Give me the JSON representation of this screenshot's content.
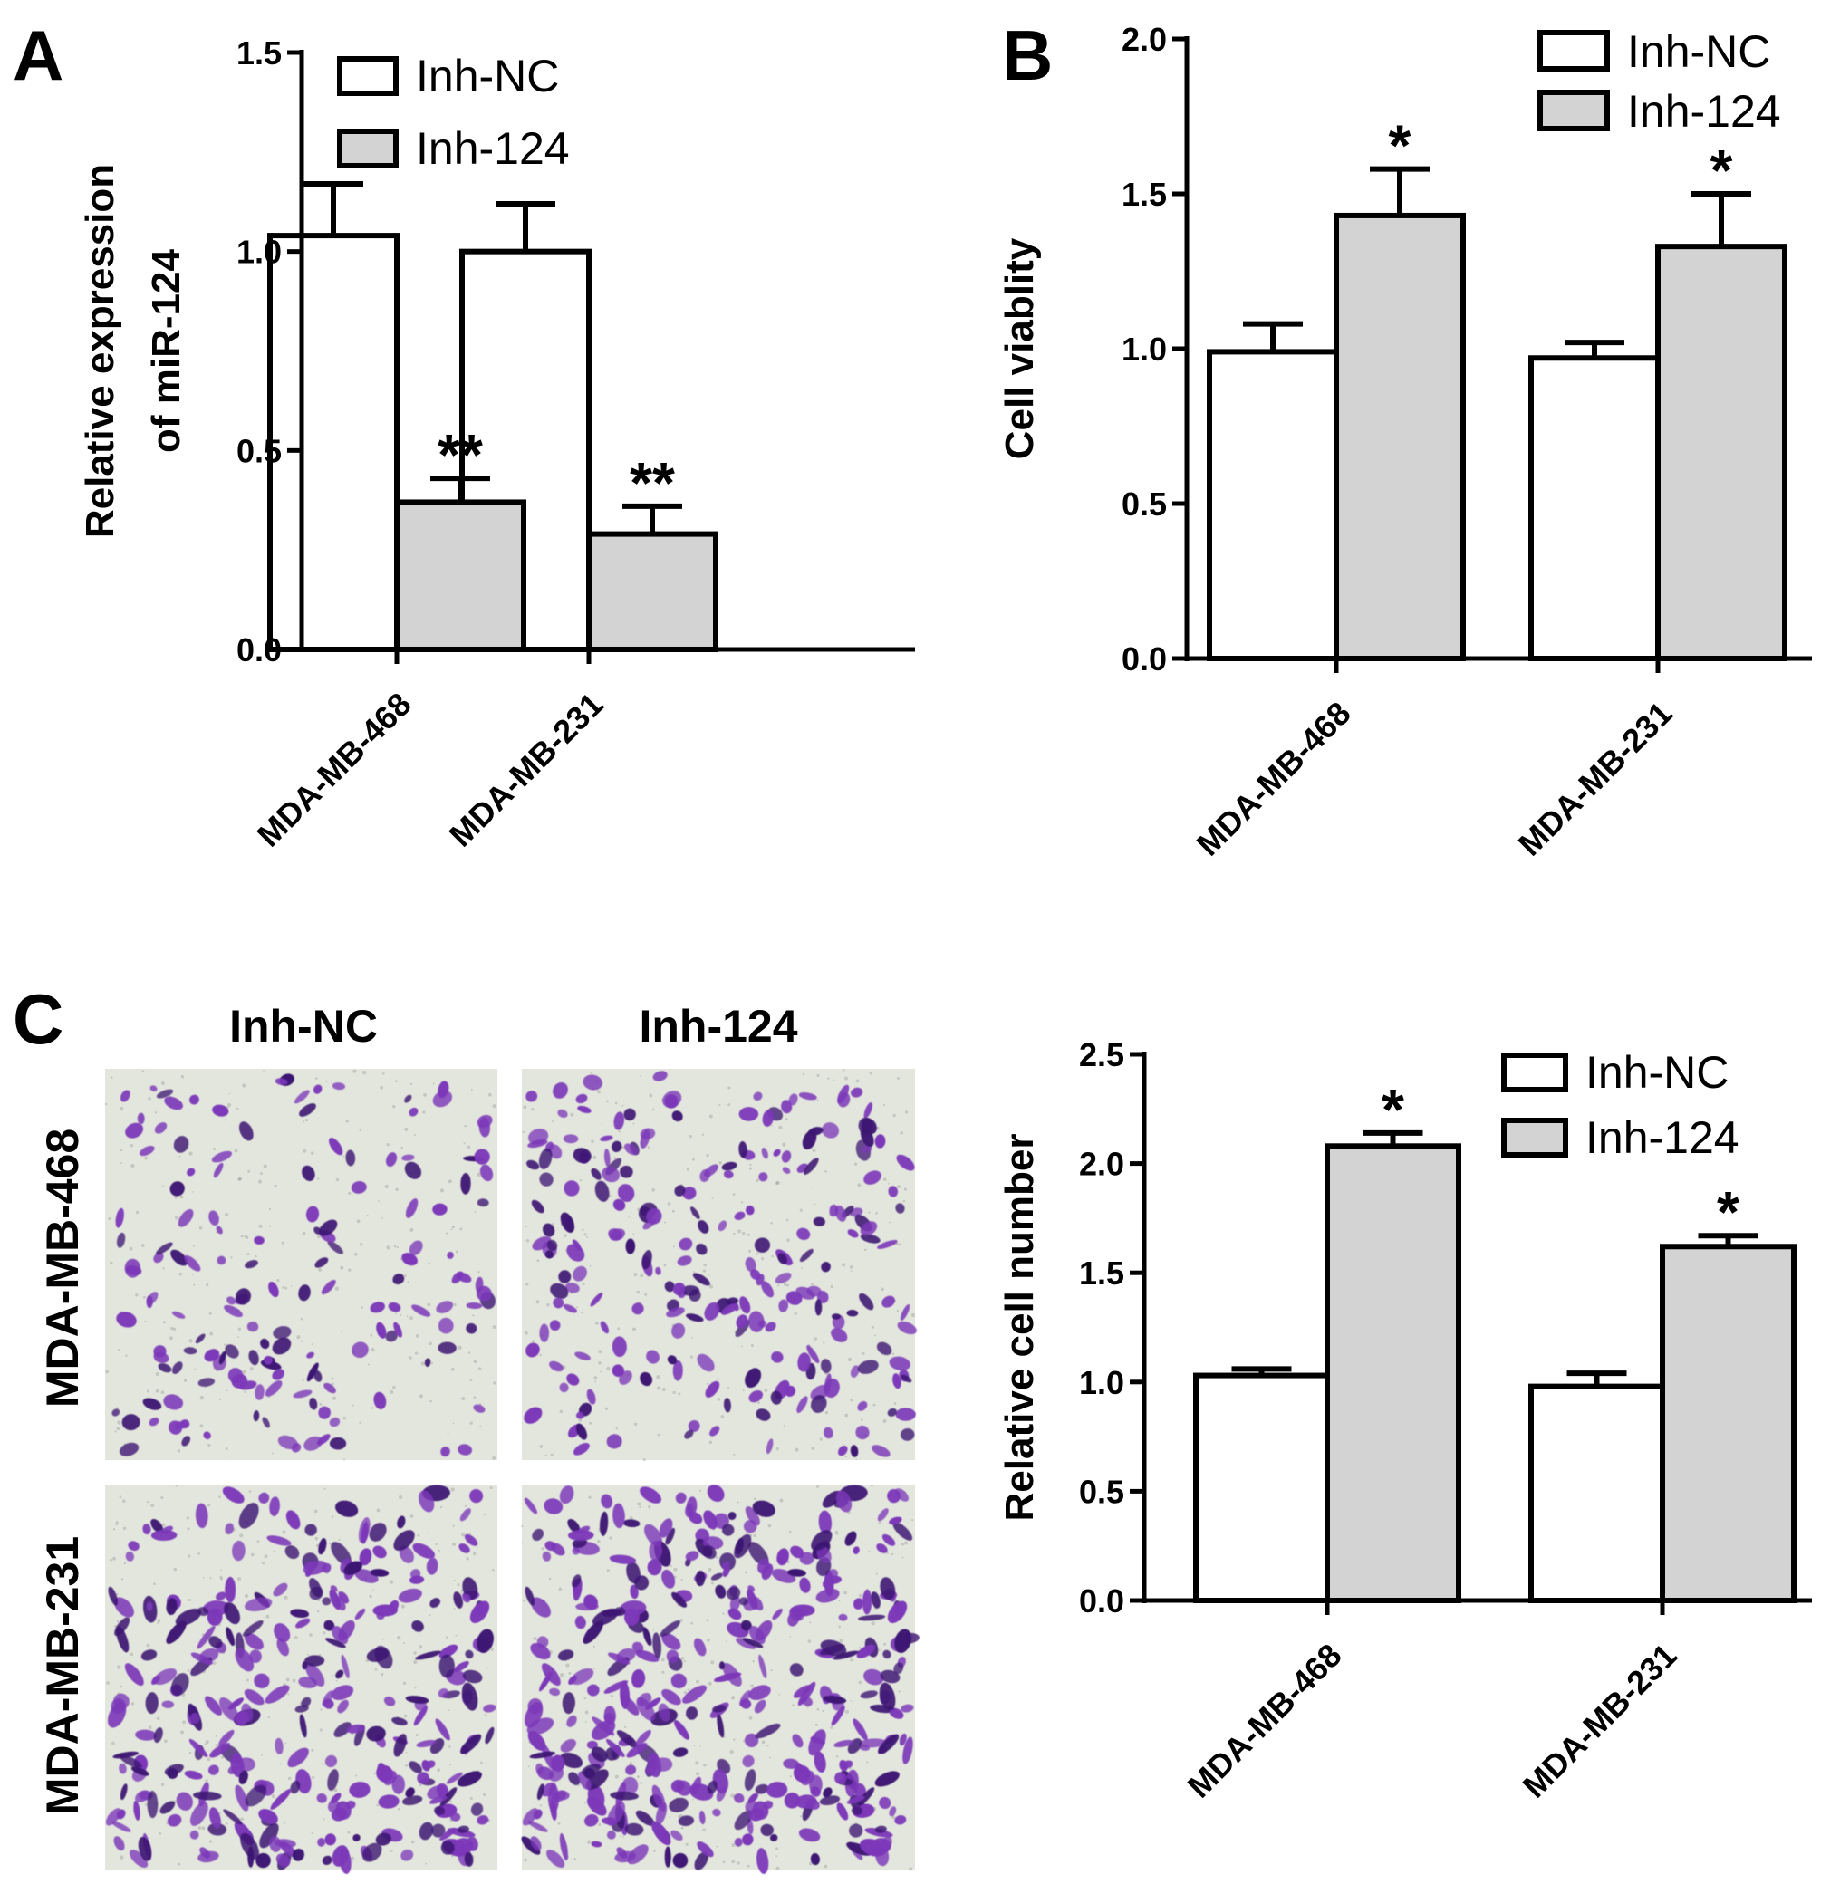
{
  "colors": {
    "inh_nc_fill": "#ffffff",
    "inh_124_fill": "#d3d3d3",
    "stroke": "#000000",
    "micrograph_background": "#e3e6dd",
    "cell_stain": "#7b39b9",
    "cell_stain_dark": "#3d1873"
  },
  "panel_c_images": {
    "letter": "C",
    "column_labels": [
      "Inh-NC",
      "Inh-124"
    ],
    "row_labels": [
      "MDA-MB-468",
      "MDA-MB-231"
    ]
  },
  "chart_data": [
    {
      "panel": "A",
      "type": "bar",
      "categories": [
        "MDA-MB-468",
        "MDA-MB-231"
      ],
      "series": [
        {
          "name": "Inh-NC",
          "values": [
            1.04,
            1.0
          ],
          "errors": [
            0.13,
            0.12
          ],
          "annotations": [
            "",
            ""
          ]
        },
        {
          "name": "Inh-124",
          "values": [
            0.37,
            0.29
          ],
          "errors": [
            0.06,
            0.07
          ],
          "annotations": [
            "**",
            "**"
          ]
        }
      ],
      "ylabel_lines": [
        "Relative expression",
        "of miR-124"
      ],
      "ylim": [
        0,
        1.5
      ],
      "yticks": [
        "0.0",
        "0.5",
        "1.0",
        "1.5"
      ],
      "legend_position": "top-right",
      "grid": false
    },
    {
      "panel": "B",
      "type": "bar",
      "categories": [
        "MDA-MB-468",
        "MDA-MB-231"
      ],
      "series": [
        {
          "name": "Inh-NC",
          "values": [
            0.99,
            0.97
          ],
          "errors": [
            0.09,
            0.05
          ],
          "annotations": [
            "",
            ""
          ]
        },
        {
          "name": "Inh-124",
          "values": [
            1.43,
            1.33
          ],
          "errors": [
            0.15,
            0.17
          ],
          "annotations": [
            "*",
            "*"
          ]
        }
      ],
      "ylabel_lines": [
        "Cell viablity"
      ],
      "ylim": [
        0,
        2.0
      ],
      "yticks": [
        "0.0",
        "0.5",
        "1.0",
        "1.5",
        "2.0"
      ],
      "legend_position": "top-right",
      "grid": false
    },
    {
      "panel": "",
      "type": "bar",
      "categories": [
        "MDA-MB-468",
        "MDA-MB-231"
      ],
      "series": [
        {
          "name": "Inh-NC",
          "values": [
            1.03,
            0.98
          ],
          "errors": [
            0.03,
            0.06
          ],
          "annotations": [
            "",
            ""
          ]
        },
        {
          "name": "Inh-124",
          "values": [
            2.08,
            1.62
          ],
          "errors": [
            0.06,
            0.05
          ],
          "annotations": [
            "*",
            "*"
          ]
        }
      ],
      "ylabel_lines": [
        "Relative cell number"
      ],
      "ylim": [
        0,
        2.5
      ],
      "yticks": [
        "0.0",
        "0.5",
        "1.0",
        "1.5",
        "2.0",
        "2.5"
      ],
      "legend_position": "top-right",
      "grid": false
    }
  ]
}
